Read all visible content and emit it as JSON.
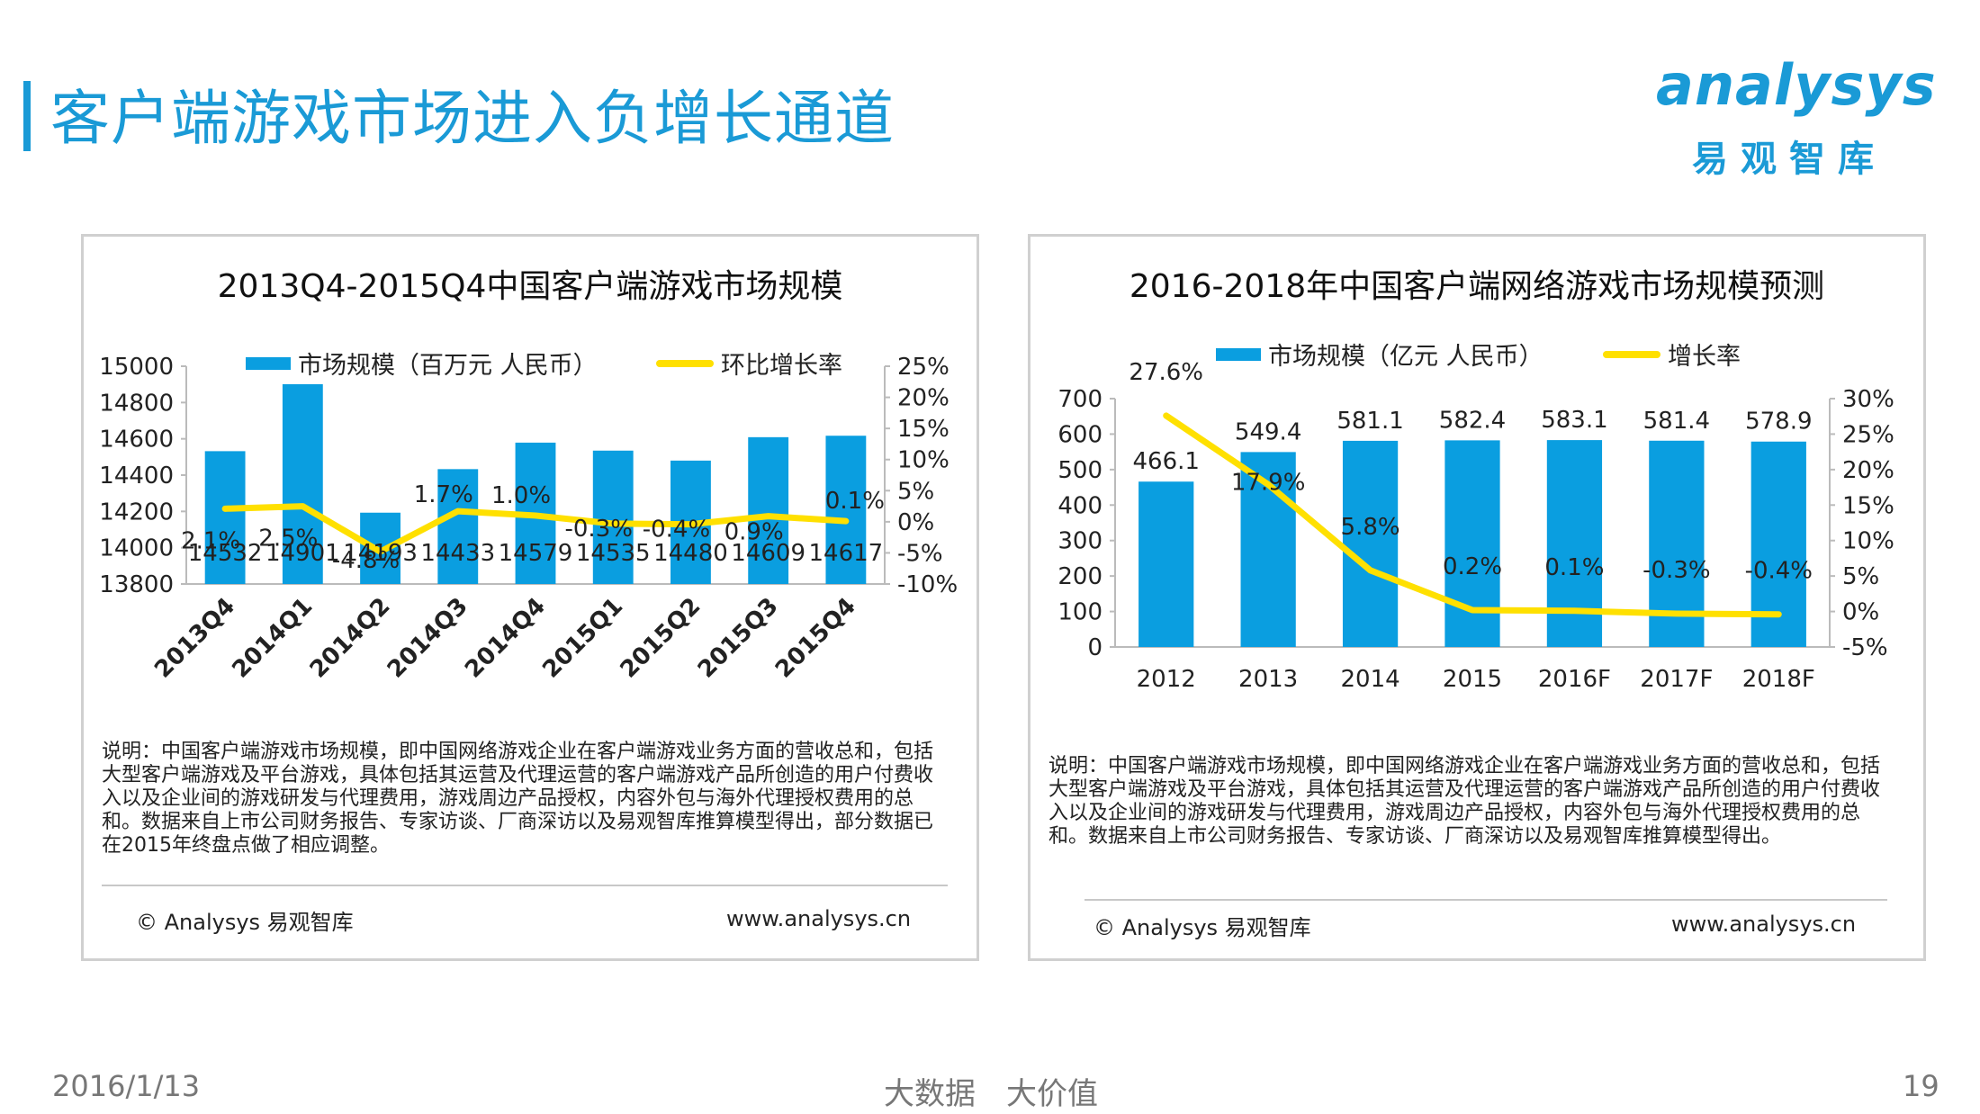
{
  "header": {
    "title": "客户端游戏市场进入负增长通道"
  },
  "logo": {
    "word": "analysys",
    "cn": "易观智库"
  },
  "left_panel": {
    "note": "说明：中国客户端游戏市场规模，即中国网络游戏企业在客户端游戏业务方面的营收总和，包括大型客户端游戏及平台游戏，具体包括其运营及代理运营的客户端游戏产品所创造的用户付费收入以及企业间的游戏研发与代理费用，游戏周边产品授权，内容外包与海外代理授权费用的总和。数据来自上市公司财务报告、专家访谈、厂商深访以及易观智库推算模型得出，部分数据已在2015年终盘点做了相应调整。",
    "copyright": "© Analysys 易观智库",
    "site": "www.analysys.cn"
  },
  "right_panel": {
    "note": "说明：中国客户端游戏市场规模，即中国网络游戏企业在客户端游戏业务方面的营收总和，包括大型客户端游戏及平台游戏，具体包括其运营及代理运营的客户端游戏产品所创造的用户付费收入以及企业间的游戏研发与代理费用，游戏周边产品授权，内容外包与海外代理授权费用的总和。数据来自上市公司财务报告、专家访谈、厂商深访以及易观智库推算模型得出。",
    "copyright": "© Analysys 易观智库",
    "site": "www.analysys.cn"
  },
  "footer": {
    "date": "2016/1/13",
    "slogan": "大数据　大价值",
    "page": "19"
  },
  "colors": {
    "accent": "#1a9ad6",
    "bar": "#0a9ee0",
    "line": "#ffe000"
  },
  "chart_data": [
    {
      "type": "bar",
      "title": "2013Q4-2015Q4中国客户端游戏市场规模",
      "categories": [
        "2013Q4",
        "2014Q1",
        "2014Q2",
        "2014Q3",
        "2014Q4",
        "2015Q1",
        "2015Q2",
        "2015Q3",
        "2015Q4"
      ],
      "series": [
        {
          "name": "市场规模（百万元 人民币）",
          "type": "bar",
          "axis": "left",
          "values": [
            14532,
            14901,
            14193,
            14433,
            14579,
            14535,
            14480,
            14609,
            14617
          ],
          "labels": [
            "14532",
            "14901",
            "14193",
            "14433",
            "14579",
            "14535",
            "14480",
            "14609",
            "14617"
          ]
        },
        {
          "name": "环比增长率",
          "type": "line",
          "axis": "right",
          "values": [
            2.1,
            2.5,
            -4.8,
            1.7,
            1.0,
            -0.3,
            -0.4,
            0.9,
            0.1
          ],
          "labels": [
            "2.1%",
            "2.5%",
            "-4.8%",
            "1.7%",
            "1.0%",
            "-0.3%",
            "-0.4%",
            "0.9%",
            "0.1%"
          ]
        }
      ],
      "y_left": {
        "min": 13800,
        "max": 15000,
        "ticks": [
          "15000",
          "14800",
          "14600",
          "14400",
          "14200",
          "14000",
          "13800"
        ]
      },
      "y_right": {
        "min": -10,
        "max": 25,
        "ticks": [
          "25%",
          "20%",
          "15%",
          "10%",
          "5%",
          "0%",
          "-5%",
          "-10%"
        ]
      },
      "legend": "top",
      "grid": false
    },
    {
      "type": "bar",
      "title": "2016-2018年中国客户端网络游戏市场规模预测",
      "categories": [
        "2012",
        "2013",
        "2014",
        "2015",
        "2016F",
        "2017F",
        "2018F"
      ],
      "series": [
        {
          "name": "市场规模（亿元 人民币）",
          "type": "bar",
          "axis": "left",
          "values": [
            466.1,
            549.4,
            581.1,
            582.4,
            583.1,
            581.4,
            578.9
          ],
          "labels": [
            "466.1",
            "549.4",
            "581.1",
            "582.4",
            "583.1",
            "581.4",
            "578.9"
          ]
        },
        {
          "name": "增长率",
          "type": "line",
          "axis": "right",
          "values": [
            27.6,
            17.9,
            5.8,
            0.2,
            0.1,
            -0.3,
            -0.4
          ],
          "labels": [
            "27.6%",
            "17.9%",
            "5.8%",
            "0.2%",
            "0.1%",
            "-0.3%",
            "-0.4%"
          ]
        }
      ],
      "y_left": {
        "min": 0,
        "max": 700,
        "ticks": [
          "700",
          "600",
          "500",
          "400",
          "300",
          "200",
          "100",
          "0"
        ]
      },
      "y_right": {
        "min": -5,
        "max": 30,
        "ticks": [
          "30%",
          "25%",
          "20%",
          "15%",
          "10%",
          "5%",
          "0%",
          "-5%"
        ]
      },
      "legend": "top",
      "grid": false
    }
  ]
}
